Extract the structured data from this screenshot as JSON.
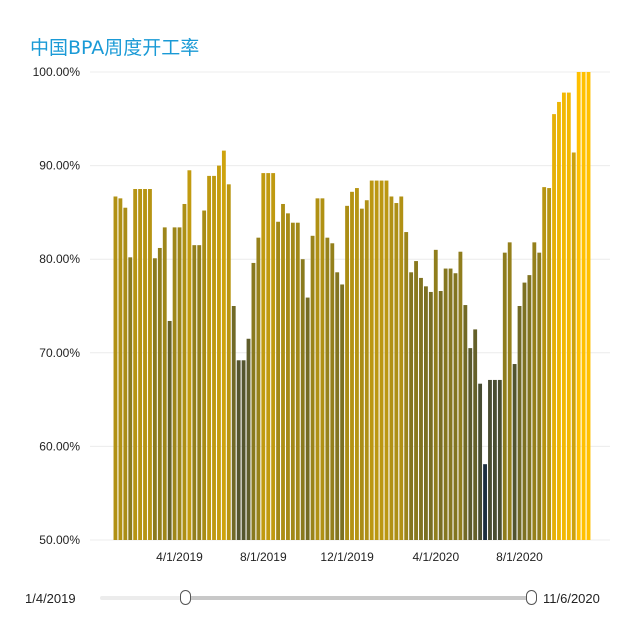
{
  "title": "中国BPA周度开工率",
  "slider": {
    "start_label": "1/4/2019",
    "end_label": "11/6/2020"
  },
  "colors": {
    "low": "#1b2e3f",
    "mid": "#8a7a1e",
    "high": "#ffc000"
  },
  "chart_data": {
    "type": "bar",
    "title": "中国BPA周度开工率",
    "xlabel": "",
    "ylabel": "",
    "ylim": [
      50,
      100
    ],
    "y_ticks": [
      "100.00%",
      "90.00%",
      "80.00%",
      "70.00%",
      "60.00%",
      "50.00%"
    ],
    "y_tick_values": [
      100,
      90,
      80,
      70,
      60,
      50
    ],
    "x_ticks": [
      "4/1/2019",
      "8/1/2019",
      "12/1/2019",
      "4/1/2020",
      "8/1/2020"
    ],
    "x_tick_positions": [
      13,
      30,
      47,
      65,
      82
    ],
    "grid": true,
    "series": [
      {
        "values": [
          86.7,
          86.5,
          85.5,
          80.2,
          87.5,
          87.5,
          87.5,
          87.5,
          80.1,
          81.2,
          83.4,
          73.4,
          83.4,
          83.4,
          85.9,
          89.5,
          81.5,
          81.5,
          85.2,
          88.9,
          88.9,
          90,
          91.6,
          88,
          75,
          69.2,
          69.2,
          71.5,
          79.6,
          82.3,
          89.2,
          89.2,
          89.2,
          84,
          85.9,
          84.9,
          83.9,
          83.9,
          80,
          75.9,
          82.5,
          86.5,
          86.5,
          82.3,
          81.7,
          78.6,
          77.3,
          85.7,
          87.2,
          87.6,
          85.4,
          86.3,
          88.4,
          88.4,
          88.4,
          88.4,
          86.7,
          86,
          86.7,
          82.9,
          78.6,
          79.8,
          78,
          77.1,
          76.5,
          81,
          76.6,
          79,
          79,
          78.5,
          80.8,
          75.1,
          70.5,
          72.5,
          66.7,
          58.1,
          67.1,
          67.1,
          67.1,
          80.7,
          81.8,
          68.8,
          75,
          77.5,
          78.3,
          81.8,
          80.7,
          87.7,
          87.6,
          95.5,
          96.8,
          97.8,
          97.8,
          91.4,
          100,
          100,
          100
        ]
      }
    ]
  }
}
